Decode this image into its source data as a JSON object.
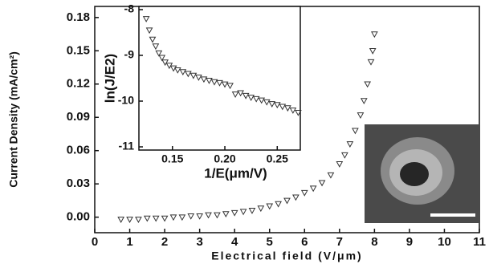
{
  "chart_data": [
    {
      "type": "scatter",
      "x_label": "Electrical field (V/μm)",
      "y_label": "Current Density (mA/cm²)",
      "xlim": [
        0,
        11
      ],
      "ylim": [
        -0.014,
        0.19
      ],
      "xticks": [
        0,
        1,
        2,
        3,
        4,
        5,
        6,
        7,
        8,
        9,
        10,
        11
      ],
      "yticks": [
        {
          "value": 0,
          "label": "0.00"
        },
        0.03,
        0.06,
        0.09,
        0.12,
        0.15,
        0.18
      ],
      "series": [
        {
          "color": "#333333",
          "x": [
            0.75,
            1.0,
            1.25,
            1.5,
            1.75,
            2.0,
            2.25,
            2.5,
            2.75,
            3.0,
            3.25,
            3.5,
            3.75,
            4.0,
            4.25,
            4.5,
            4.75,
            5.0,
            5.25,
            5.5,
            5.75,
            6.0,
            6.25,
            6.5,
            6.75,
            7.0,
            7.15,
            7.3,
            7.45,
            7.6,
            7.7,
            7.8,
            7.9,
            7.95,
            8.0
          ],
          "values": [
            -0.002,
            -0.002,
            -0.002,
            -0.001,
            -0.001,
            -0.001,
            0,
            0,
            0.001,
            0.001,
            0.002,
            0.002,
            0.003,
            0.004,
            0.005,
            0.006,
            0.008,
            0.01,
            0.012,
            0.015,
            0.018,
            0.022,
            0.026,
            0.031,
            0.038,
            0.048,
            0.056,
            0.066,
            0.078,
            0.092,
            0.105,
            0.12,
            0.14,
            0.15,
            0.165
          ]
        }
      ]
    },
    {
      "type": "scatter",
      "x_label": "1/E(μm/V)",
      "y_label": "ln(J/E2)",
      "xlim": [
        0.118,
        0.272
      ],
      "ylim": [
        -11.07,
        -7.93
      ],
      "xticks": [
        0.15,
        {
          "value": 0.2,
          "label": "0.20"
        },
        0.25
      ],
      "yticks": [
        -8,
        -9,
        -10,
        -11
      ],
      "series": [
        {
          "color": "#333333",
          "x": [
            0.125,
            0.128,
            0.131,
            0.134,
            0.137,
            0.14,
            0.143,
            0.147,
            0.151,
            0.155,
            0.16,
            0.165,
            0.17,
            0.175,
            0.18,
            0.185,
            0.19,
            0.195,
            0.2,
            0.205,
            0.21,
            0.215,
            0.22,
            0.225,
            0.23,
            0.235,
            0.24,
            0.245,
            0.25,
            0.255,
            0.26,
            0.265,
            0.27
          ],
          "values": [
            -8.2,
            -8.45,
            -8.65,
            -8.8,
            -8.95,
            -9.05,
            -9.15,
            -9.22,
            -9.28,
            -9.32,
            -9.36,
            -9.4,
            -9.44,
            -9.48,
            -9.52,
            -9.55,
            -9.58,
            -9.6,
            -9.63,
            -9.66,
            -9.85,
            -9.82,
            -9.88,
            -9.92,
            -9.95,
            -9.98,
            -10.02,
            -10.06,
            -10.08,
            -10.12,
            -10.15,
            -10.2,
            -10.25
          ]
        }
      ]
    }
  ]
}
